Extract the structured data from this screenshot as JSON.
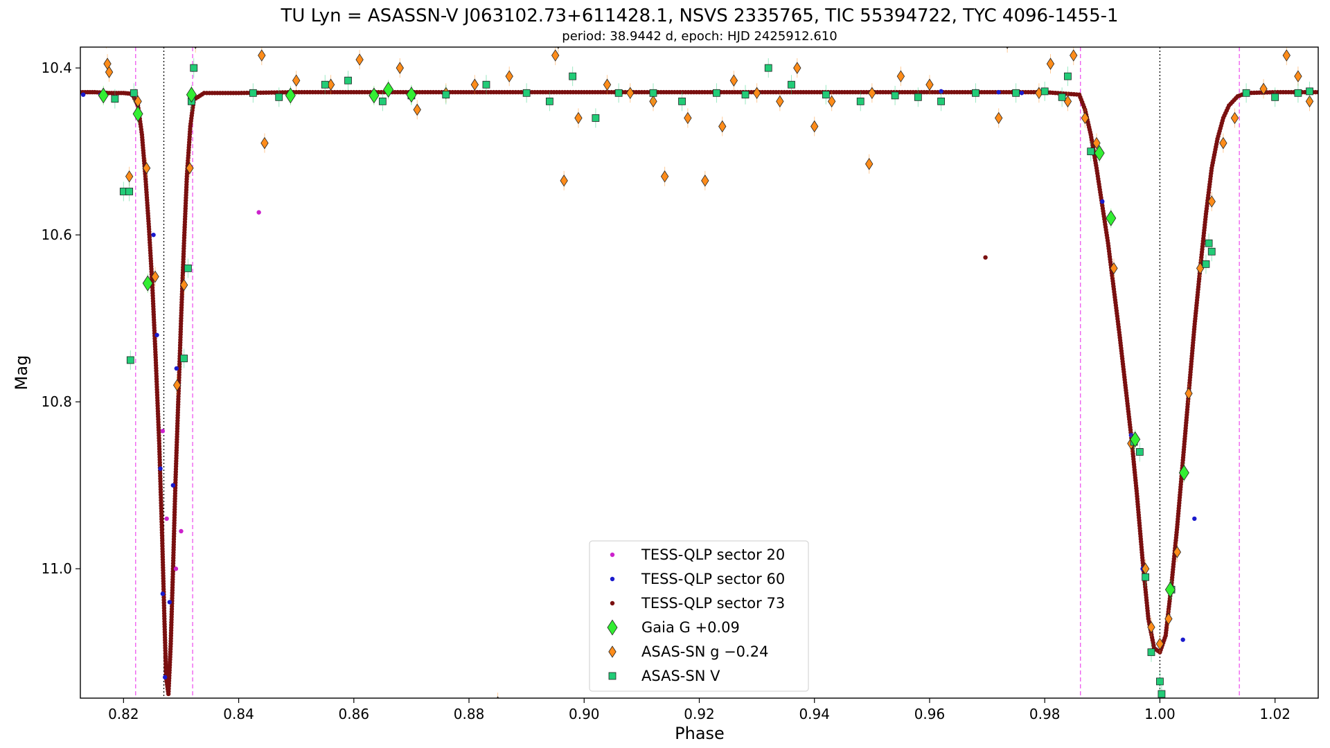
{
  "chart_data": {
    "type": "scatter",
    "title": "TU Lyn = ASASSN-V J063102.73+611428.1, NSVS 2335765, TIC 55394722, TYC 4096-1455-1",
    "subtitle": "period: 38.9442 d, epoch: HJD 2425912.610",
    "xlabel": "Phase",
    "ylabel": "Mag",
    "xlim": [
      0.8125,
      1.0275
    ],
    "ylim": [
      10.375,
      11.155
    ],
    "y_inverted": true,
    "xticks": [
      "0.82",
      "0.84",
      "0.86",
      "0.88",
      "0.90",
      "0.92",
      "0.94",
      "0.96",
      "0.98",
      "1.00",
      "1.02"
    ],
    "xtick_values": [
      0.82,
      0.84,
      0.86,
      0.88,
      0.9,
      0.92,
      0.94,
      0.96,
      0.98,
      1.0,
      1.02
    ],
    "yticks": [
      "10.4",
      "10.6",
      "10.8",
      "11.0"
    ],
    "ytick_values": [
      10.4,
      10.6,
      10.8,
      11.0
    ],
    "legend_position": "lower-center",
    "grid": false,
    "vlines": [
      {
        "x": 0.8221,
        "style": "dashed",
        "color": "#ee55ee"
      },
      {
        "x": 0.827,
        "style": "dotted",
        "color": "#000000"
      },
      {
        "x": 0.832,
        "style": "dashed",
        "color": "#ee55ee"
      },
      {
        "x": 0.9862,
        "style": "dashed",
        "color": "#ee55ee"
      },
      {
        "x": 1.0,
        "style": "dotted",
        "color": "#000000"
      },
      {
        "x": 1.0138,
        "style": "dashed",
        "color": "#ee55ee"
      }
    ],
    "series": [
      {
        "name": "TESS-QLP sector 20",
        "color": "#cc22cc",
        "marker": "dot",
        "points": [
          [
            0.8435,
            10.573
          ],
          [
            0.8268,
            10.835
          ],
          [
            0.8275,
            10.94
          ],
          [
            0.8291,
            11.0
          ],
          [
            0.83,
            10.955
          ]
        ]
      },
      {
        "name": "TESS-QLP sector 60",
        "color": "#1a1acc",
        "marker": "dot",
        "points": [
          [
            0.813,
            10.432
          ],
          [
            0.816,
            10.432
          ],
          [
            0.8252,
            10.6
          ],
          [
            0.8258,
            10.72
          ],
          [
            0.8264,
            10.88
          ],
          [
            0.8268,
            11.03
          ],
          [
            0.8272,
            11.13
          ],
          [
            0.828,
            11.04
          ],
          [
            0.8286,
            10.9
          ],
          [
            0.8292,
            10.76
          ],
          [
            0.962,
            10.428
          ],
          [
            0.968,
            10.428
          ],
          [
            0.972,
            10.429
          ],
          [
            0.976,
            10.43
          ],
          [
            0.995,
            10.84
          ],
          [
            0.997,
            11.0
          ],
          [
            1.004,
            11.085
          ],
          [
            1.006,
            10.94
          ],
          [
            0.99,
            10.56
          ]
        ]
      },
      {
        "name": "TESS-QLP sector 73",
        "color": "#7a1010",
        "marker": "dot",
        "points": [
          [
            0.8125,
            10.429
          ],
          [
            0.815,
            10.429
          ],
          [
            0.8175,
            10.43
          ],
          [
            0.82,
            10.43
          ],
          [
            0.8215,
            10.431
          ],
          [
            0.8225,
            10.445
          ],
          [
            0.8232,
            10.48
          ],
          [
            0.8238,
            10.53
          ],
          [
            0.8244,
            10.59
          ],
          [
            0.825,
            10.66
          ],
          [
            0.8256,
            10.75
          ],
          [
            0.8262,
            10.85
          ],
          [
            0.8267,
            10.96
          ],
          [
            0.8271,
            11.06
          ],
          [
            0.8274,
            11.13
          ],
          [
            0.8278,
            11.15
          ],
          [
            0.8282,
            11.09
          ],
          [
            0.8286,
            11.0
          ],
          [
            0.829,
            10.9
          ],
          [
            0.8295,
            10.8
          ],
          [
            0.83,
            10.7
          ],
          [
            0.8305,
            10.61
          ],
          [
            0.831,
            10.53
          ],
          [
            0.8316,
            10.47
          ],
          [
            0.8322,
            10.438
          ],
          [
            0.834,
            10.43
          ],
          [
            0.84,
            10.43
          ],
          [
            0.85,
            10.429
          ],
          [
            0.86,
            10.429
          ],
          [
            0.87,
            10.429
          ],
          [
            0.88,
            10.429
          ],
          [
            0.89,
            10.429
          ],
          [
            0.9,
            10.429
          ],
          [
            0.91,
            10.429
          ],
          [
            0.92,
            10.429
          ],
          [
            0.93,
            10.429
          ],
          [
            0.94,
            10.429
          ],
          [
            0.95,
            10.429
          ],
          [
            0.96,
            10.429
          ],
          [
            0.9697,
            10.627
          ],
          [
            0.97,
            10.429
          ],
          [
            0.98,
            10.429
          ],
          [
            0.986,
            10.432
          ],
          [
            0.987,
            10.45
          ],
          [
            0.988,
            10.48
          ],
          [
            0.989,
            10.52
          ],
          [
            0.99,
            10.565
          ],
          [
            0.991,
            10.61
          ],
          [
            0.992,
            10.665
          ],
          [
            0.993,
            10.72
          ],
          [
            0.994,
            10.78
          ],
          [
            0.995,
            10.84
          ],
          [
            0.996,
            10.91
          ],
          [
            0.997,
            10.99
          ],
          [
            0.998,
            11.06
          ],
          [
            0.999,
            11.095
          ],
          [
            1.0,
            11.1
          ],
          [
            1.001,
            11.08
          ],
          [
            1.002,
            11.02
          ],
          [
            1.003,
            10.95
          ],
          [
            1.004,
            10.87
          ],
          [
            1.005,
            10.79
          ],
          [
            1.006,
            10.71
          ],
          [
            1.007,
            10.64
          ],
          [
            1.008,
            10.575
          ],
          [
            1.009,
            10.52
          ],
          [
            1.01,
            10.485
          ],
          [
            1.011,
            10.46
          ],
          [
            1.012,
            10.445
          ],
          [
            1.0135,
            10.434
          ],
          [
            1.015,
            10.43
          ],
          [
            1.02,
            10.429
          ],
          [
            1.0275,
            10.429
          ]
        ]
      },
      {
        "name": "Gaia G +0.09",
        "color": "#33ee33",
        "marker": "diamond",
        "points": [
          [
            0.8165,
            10.433
          ],
          [
            0.8225,
            10.455
          ],
          [
            0.8242,
            10.658
          ],
          [
            0.8318,
            10.432
          ],
          [
            0.849,
            10.433
          ],
          [
            0.8635,
            10.433
          ],
          [
            0.866,
            10.426
          ],
          [
            0.87,
            10.432
          ],
          [
            0.9895,
            10.502
          ],
          [
            0.9915,
            10.58
          ],
          [
            0.9957,
            10.845
          ],
          [
            1.0018,
            11.025
          ],
          [
            1.0042,
            10.885
          ]
        ]
      },
      {
        "name": "ASAS-SN g −0.24",
        "color": "#ff8c1a",
        "marker": "diamond",
        "points": [
          [
            0.817,
            10.365
          ],
          [
            0.8172,
            10.395
          ],
          [
            0.8175,
            10.405
          ],
          [
            0.821,
            10.53
          ],
          [
            0.8225,
            10.44
          ],
          [
            0.824,
            10.52
          ],
          [
            0.8255,
            10.65
          ],
          [
            0.8293,
            10.78
          ],
          [
            0.8305,
            10.66
          ],
          [
            0.8315,
            10.52
          ],
          [
            0.8325,
            10.37
          ],
          [
            0.844,
            10.385
          ],
          [
            0.8445,
            10.49
          ],
          [
            0.85,
            10.415
          ],
          [
            0.856,
            10.42
          ],
          [
            0.861,
            10.39
          ],
          [
            0.868,
            10.4
          ],
          [
            0.871,
            10.45
          ],
          [
            0.876,
            10.43
          ],
          [
            0.881,
            10.42
          ],
          [
            0.885,
            11.16
          ],
          [
            0.887,
            10.41
          ],
          [
            0.895,
            10.385
          ],
          [
            0.8955,
            10.37
          ],
          [
            0.8965,
            10.535
          ],
          [
            0.899,
            10.46
          ],
          [
            0.904,
            10.42
          ],
          [
            0.908,
            10.43
          ],
          [
            0.912,
            10.44
          ],
          [
            0.914,
            10.53
          ],
          [
            0.918,
            10.46
          ],
          [
            0.921,
            10.535
          ],
          [
            0.924,
            10.47
          ],
          [
            0.926,
            10.415
          ],
          [
            0.93,
            10.43
          ],
          [
            0.934,
            10.44
          ],
          [
            0.937,
            10.4
          ],
          [
            0.94,
            10.47
          ],
          [
            0.943,
            10.44
          ],
          [
            0.9495,
            10.515
          ],
          [
            0.95,
            10.43
          ],
          [
            0.955,
            10.41
          ],
          [
            0.96,
            10.42
          ],
          [
            0.972,
            10.46
          ],
          [
            0.9735,
            10.37
          ],
          [
            0.979,
            10.43
          ],
          [
            0.981,
            10.395
          ],
          [
            0.984,
            10.44
          ],
          [
            0.985,
            10.385
          ],
          [
            0.987,
            10.46
          ],
          [
            0.989,
            10.49
          ],
          [
            0.992,
            10.64
          ],
          [
            0.995,
            10.85
          ],
          [
            0.9975,
            11.0
          ],
          [
            0.9985,
            11.07
          ],
          [
            1.0,
            11.09
          ],
          [
            1.0015,
            11.06
          ],
          [
            1.003,
            10.98
          ],
          [
            1.005,
            10.79
          ],
          [
            1.007,
            10.64
          ],
          [
            1.009,
            10.56
          ],
          [
            1.011,
            10.49
          ],
          [
            1.013,
            10.46
          ],
          [
            1.018,
            10.425
          ],
          [
            1.022,
            10.385
          ],
          [
            1.024,
            10.41
          ],
          [
            1.026,
            10.44
          ]
        ]
      },
      {
        "name": "ASAS-SN V",
        "color": "#22cc77",
        "marker": "square",
        "points": [
          [
            0.8185,
            10.437
          ],
          [
            0.82,
            10.548
          ],
          [
            0.821,
            10.548
          ],
          [
            0.8212,
            10.75
          ],
          [
            0.8218,
            10.43
          ],
          [
            0.8305,
            10.748
          ],
          [
            0.8312,
            10.64
          ],
          [
            0.8318,
            10.44
          ],
          [
            0.8322,
            10.4
          ],
          [
            0.8425,
            10.43
          ],
          [
            0.847,
            10.435
          ],
          [
            0.855,
            10.42
          ],
          [
            0.859,
            10.415
          ],
          [
            0.865,
            10.44
          ],
          [
            0.87,
            10.433
          ],
          [
            0.876,
            10.432
          ],
          [
            0.883,
            10.42
          ],
          [
            0.89,
            10.43
          ],
          [
            0.894,
            10.44
          ],
          [
            0.898,
            10.41
          ],
          [
            0.902,
            10.46
          ],
          [
            0.906,
            10.43
          ],
          [
            0.912,
            10.43
          ],
          [
            0.917,
            10.44
          ],
          [
            0.923,
            10.43
          ],
          [
            0.928,
            10.432
          ],
          [
            0.932,
            10.4
          ],
          [
            0.936,
            10.42
          ],
          [
            0.942,
            10.432
          ],
          [
            0.948,
            10.44
          ],
          [
            0.954,
            10.433
          ],
          [
            0.958,
            10.435
          ],
          [
            0.962,
            10.44
          ],
          [
            0.968,
            10.43
          ],
          [
            0.975,
            10.43
          ],
          [
            0.98,
            10.428
          ],
          [
            0.983,
            10.435
          ],
          [
            0.984,
            10.41
          ],
          [
            0.988,
            10.5
          ],
          [
            0.9955,
            10.848
          ],
          [
            0.9965,
            10.86
          ],
          [
            0.9975,
            11.01
          ],
          [
            0.9985,
            11.1
          ],
          [
            1.0,
            11.135
          ],
          [
            1.0003,
            11.15
          ],
          [
            1.002,
            11.025
          ],
          [
            1.008,
            10.635
          ],
          [
            1.0085,
            10.61
          ],
          [
            1.009,
            10.62
          ],
          [
            1.015,
            10.43
          ],
          [
            1.02,
            10.435
          ],
          [
            1.024,
            10.43
          ],
          [
            1.026,
            10.428
          ]
        ]
      }
    ]
  }
}
